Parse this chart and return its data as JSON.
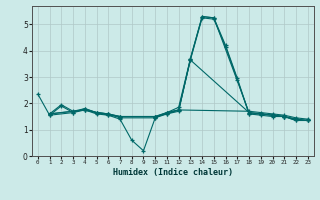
{
  "xlabel": "Humidex (Indice chaleur)",
  "ylabel": "",
  "xlim": [
    -0.5,
    23.5
  ],
  "ylim": [
    0,
    5.7
  ],
  "yticks": [
    0,
    1,
    2,
    3,
    4,
    5
  ],
  "xticks": [
    0,
    1,
    2,
    3,
    4,
    5,
    6,
    7,
    8,
    9,
    10,
    11,
    12,
    13,
    14,
    15,
    16,
    17,
    18,
    19,
    20,
    21,
    22,
    23
  ],
  "bg_color": "#cceae8",
  "grid_color": "#b0c8c8",
  "line_color": "#006868",
  "series": [
    [
      2.35,
      1.55,
      1.9,
      1.65,
      1.75,
      1.6,
      1.55,
      1.4,
      0.6,
      0.2,
      1.45,
      1.65,
      1.85,
      3.7,
      5.3,
      5.25,
      4.2,
      2.95,
      1.6,
      1.6,
      1.55,
      1.5,
      1.35,
      1.35
    ],
    [
      null,
      1.55,
      null,
      1.65,
      1.8,
      1.65,
      1.6,
      1.45,
      null,
      null,
      1.45,
      1.6,
      1.7,
      3.7,
      5.3,
      5.25,
      null,
      null,
      1.65,
      1.6,
      1.55,
      1.5,
      1.4,
      1.35
    ],
    [
      null,
      1.6,
      1.95,
      1.7,
      1.8,
      1.65,
      1.6,
      1.5,
      null,
      null,
      1.5,
      1.6,
      1.75,
      null,
      null,
      null,
      null,
      null,
      1.7,
      1.65,
      1.6,
      1.55,
      1.45,
      1.4
    ],
    [
      null,
      1.6,
      null,
      null,
      1.75,
      1.65,
      1.6,
      1.5,
      null,
      null,
      1.5,
      1.65,
      1.75,
      3.65,
      null,
      null,
      null,
      null,
      1.65,
      1.6,
      1.55,
      1.5,
      1.4,
      1.35
    ],
    [
      null,
      1.6,
      null,
      null,
      1.75,
      1.65,
      1.55,
      1.5,
      null,
      null,
      1.5,
      1.65,
      1.75,
      3.65,
      5.25,
      5.2,
      4.15,
      2.9,
      1.6,
      1.55,
      1.5,
      1.5,
      1.35,
      1.35
    ]
  ]
}
